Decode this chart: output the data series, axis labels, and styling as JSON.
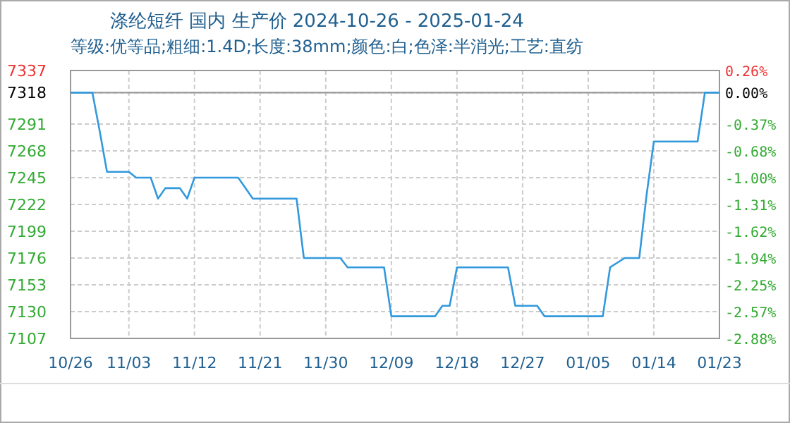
{
  "chart_data": {
    "type": "line",
    "title": "涤纶短纤 国内 生产价 2024-10-26 - 2025-01-24",
    "subtitle": "等级:优等品;粗细:1.4D;长度:38mm;颜色:白;色泽:半消光;工艺:直纺",
    "x": [
      "2024-10-26",
      "2024-10-29",
      "2024-10-30",
      "2024-10-31",
      "2024-11-03",
      "2024-11-04",
      "2024-11-06",
      "2024-11-07",
      "2024-11-08",
      "2024-11-10",
      "2024-11-11",
      "2024-11-12",
      "2024-11-18",
      "2024-11-20",
      "2024-11-26",
      "2024-11-27",
      "2024-12-02",
      "2024-12-03",
      "2024-12-08",
      "2024-12-09",
      "2024-12-15",
      "2024-12-16",
      "2024-12-17",
      "2024-12-18",
      "2024-12-25",
      "2024-12-26",
      "2024-12-29",
      "2024-12-30",
      "2025-01-07",
      "2025-01-08",
      "2025-01-10",
      "2025-01-12",
      "2025-01-13",
      "2025-01-14",
      "2025-01-20",
      "2025-01-21",
      "2025-01-23"
    ],
    "series": [
      {
        "color": "#3399dd",
        "values": [
          7318,
          7318,
          7285,
          7250,
          7250,
          7245,
          7245,
          7227,
          7236,
          7236,
          7227,
          7245,
          7245,
          7227,
          7227,
          7176,
          7176,
          7168,
          7168,
          7126,
          7126,
          7135,
          7135,
          7168,
          7168,
          7135,
          7135,
          7126,
          7126,
          7168,
          7176,
          7176,
          7230,
          7276,
          7276,
          7318,
          7318
        ]
      }
    ],
    "xlim": [
      "2024-10-26",
      "2025-01-23"
    ],
    "xticks": [
      {
        "value": "2024-10-26",
        "label": "10/26"
      },
      {
        "value": "2024-11-03",
        "label": "11/03"
      },
      {
        "value": "2024-11-12",
        "label": "11/12"
      },
      {
        "value": "2024-11-21",
        "label": "11/21"
      },
      {
        "value": "2024-11-30",
        "label": "11/30"
      },
      {
        "value": "2024-12-09",
        "label": "12/09"
      },
      {
        "value": "2024-12-18",
        "label": "12/18"
      },
      {
        "value": "2024-12-27",
        "label": "12/27"
      },
      {
        "value": "2025-01-05",
        "label": "01/05"
      },
      {
        "value": "2025-01-14",
        "label": "01/14"
      },
      {
        "value": "2025-01-23",
        "label": "01/23"
      }
    ],
    "ylim": [
      7107,
      7337
    ],
    "yticks": [
      7107,
      7130,
      7153,
      7176,
      7199,
      7222,
      7245,
      7268,
      7291,
      7318,
      7337
    ],
    "y2lim": [
      -2.88,
      0.26
    ],
    "y2ticks": [
      {
        "value": -2.88,
        "label": "-2.88%"
      },
      {
        "value": -2.57,
        "label": "-2.57%"
      },
      {
        "value": -2.25,
        "label": "-2.25%"
      },
      {
        "value": -1.94,
        "label": "-1.94%"
      },
      {
        "value": -1.62,
        "label": "-1.62%"
      },
      {
        "value": -1.31,
        "label": "-1.31%"
      },
      {
        "value": -1.0,
        "label": "-1.00%"
      },
      {
        "value": -0.68,
        "label": "-0.68%"
      },
      {
        "value": -0.37,
        "label": "-0.37%"
      },
      {
        "value": 0,
        "label": "0.00%"
      },
      {
        "value": 0.26,
        "label": "0.26%"
      }
    ],
    "ref_lines": [
      {
        "axis": "y",
        "value": 7318,
        "color": "#999999"
      }
    ],
    "grid": true,
    "marker": "none",
    "line_style": "solid"
  }
}
